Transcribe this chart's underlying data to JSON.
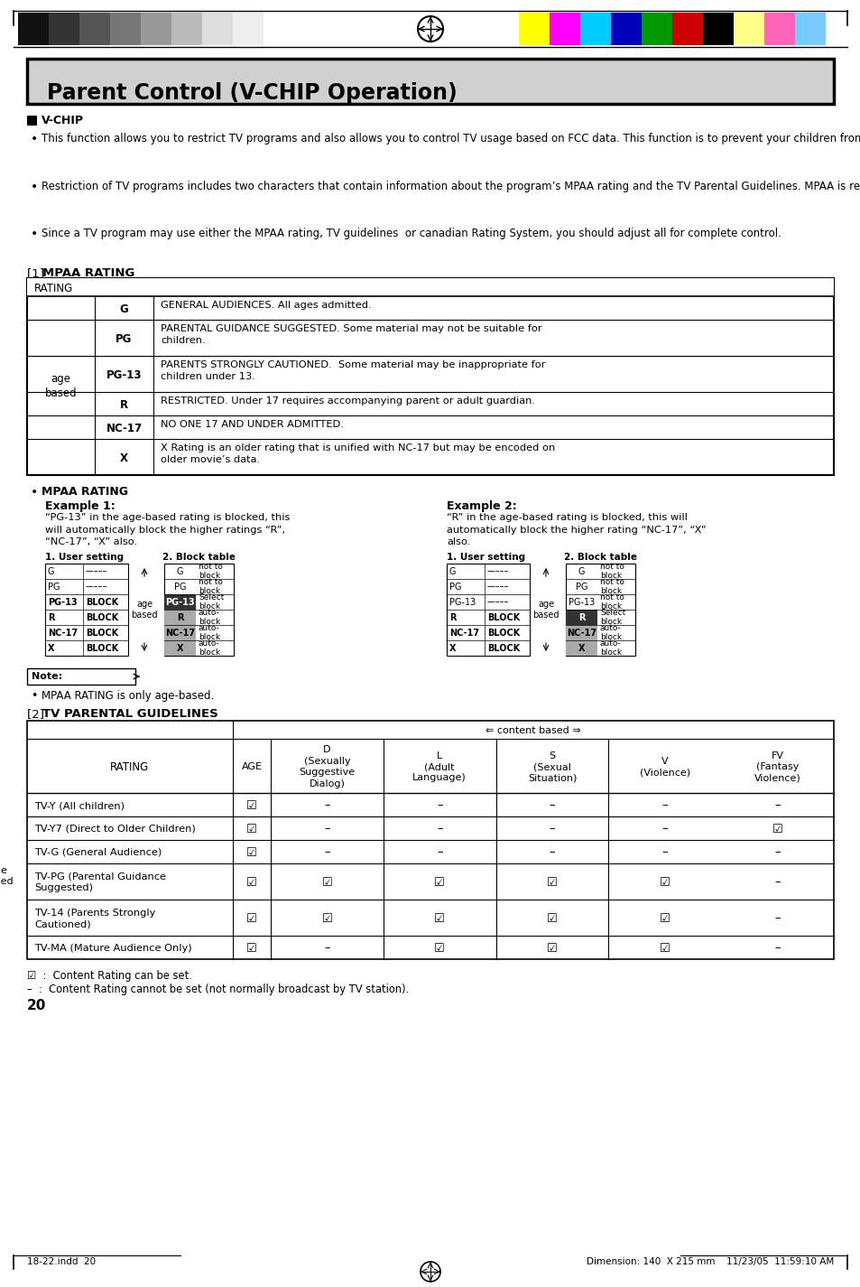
{
  "title": "Parent Control (V-CHIP Operation)",
  "page_number": "20",
  "dimension_text": "Dimension: 140  X 215 mm",
  "footer_left": "18-22.indd  20",
  "footer_right": "11/23/05  11:59:10 AM",
  "bg_color": "#ffffff",
  "title_bg": "#d0d0d0",
  "vchip_heading": "V-CHIP",
  "vchip_bullet1": "This function allows you to restrict TV programs and also allows you to control TV usage based on FCC data. This function is to prevent your children from watching violence or sexual scenes that may be harmful.",
  "vchip_bullet2": "Restriction of TV programs includes two characters that contain information about the program’s MPAA rating and the TV Parental Guidelines. MPAA is restricted by age. TV Parental Guidelines are restricted by age and contents.",
  "vchip_bullet3": "Since a TV program may use either the MPAA rating, TV guidelines  or canadian Rating System, you should adjust all for complete control.",
  "mpaa_heading": "[1] MPAA RATING",
  "mpaa_rows": [
    {
      "rating": "G",
      "desc": "GENERAL AUDIENCES. All ages admitted.",
      "tall": false
    },
    {
      "rating": "PG",
      "desc": "PARENTAL GUIDANCE SUGGESTED. Some material may not be suitable for\nchildren.",
      "tall": true
    },
    {
      "rating": "PG-13",
      "desc": "PARENTS STRONGLY CAUTIONED.  Some material may be inappropriate for\nchildren under 13.",
      "tall": true
    },
    {
      "rating": "R",
      "desc": "RESTRICTED. Under 17 requires accompanying parent or adult guardian.",
      "tall": false
    },
    {
      "rating": "NC-17",
      "desc": "NO ONE 17 AND UNDER ADMITTED.",
      "tall": false
    },
    {
      "rating": "X",
      "desc": "X Rating is an older rating that is unified with NC-17 but may be encoded on\nolder movie’s data.",
      "tall": true
    }
  ],
  "mpaa_rating_bullet": "MPAA RATING",
  "ex1_title": "Example 1:",
  "ex1_text": "“PG-13” in the age-based rating is blocked, this\nwill automatically block the higher ratings “R”,\n“NC-17”, “X” also.",
  "ex2_title": "Example 2:",
  "ex2_text": "“R” in the age-based rating is blocked, this will\nautomatically block the higher rating “NC-17”, “X”\nalso.",
  "ex1_user": [
    {
      "lbl": "G",
      "val": "–––––",
      "hi": false
    },
    {
      "lbl": "PG",
      "val": "–––––",
      "hi": false
    },
    {
      "lbl": "PG-13",
      "val": "BLOCK",
      "hi": false
    },
    {
      "lbl": "R",
      "val": "BLOCK",
      "hi": false
    },
    {
      "lbl": "NC-17",
      "val": "BLOCK",
      "hi": false
    },
    {
      "lbl": "X",
      "val": "BLOCK",
      "hi": false
    }
  ],
  "ex1_block": [
    {
      "lbl": "G",
      "val": "not to\nblock",
      "hi": false
    },
    {
      "lbl": "PG",
      "val": "not to\nblock",
      "hi": false
    },
    {
      "lbl": "PG-13",
      "val": "Select\nblock",
      "hi": true,
      "dark": true
    },
    {
      "lbl": "R",
      "val": "auto-\nblock",
      "hi": true,
      "dark": false
    },
    {
      "lbl": "NC-17",
      "val": "auto-\nblock",
      "hi": true,
      "dark": false
    },
    {
      "lbl": "X",
      "val": "auto-\nblock",
      "hi": true,
      "dark": false
    }
  ],
  "ex2_user": [
    {
      "lbl": "G",
      "val": "–––––",
      "hi": false
    },
    {
      "lbl": "PG",
      "val": "–––––",
      "hi": false
    },
    {
      "lbl": "PG-13",
      "val": "–––––",
      "hi": false
    },
    {
      "lbl": "R",
      "val": "BLOCK",
      "hi": false
    },
    {
      "lbl": "NC-17",
      "val": "BLOCK",
      "hi": false
    },
    {
      "lbl": "X",
      "val": "BLOCK",
      "hi": false
    }
  ],
  "ex2_block": [
    {
      "lbl": "G",
      "val": "not to\nblock",
      "hi": false
    },
    {
      "lbl": "PG",
      "val": "not to\nblock",
      "hi": false
    },
    {
      "lbl": "PG-13",
      "val": "not to\nblock",
      "hi": false
    },
    {
      "lbl": "R",
      "val": "Select\nblock",
      "hi": true,
      "dark": true
    },
    {
      "lbl": "NC-17",
      "val": "auto-\nblock",
      "hi": true,
      "dark": false
    },
    {
      "lbl": "X",
      "val": "auto-\nblock",
      "hi": true,
      "dark": false
    }
  ],
  "note_text": "MPAA RATING is only age-based.",
  "tv_heading": "[2] TV PARENTAL GUIDELINES",
  "tv_col_headers": [
    "AGE",
    "D\n(Sexually\nSuggestive\nDialog)",
    "L\n(Adult\nLanguage)",
    "S\n(Sexual\nSituation)",
    "V\n(Violence)",
    "FV\n(Fantasy\nViolence)"
  ],
  "tv_rows": [
    {
      "rating": "TV-Y (All children)",
      "vals": [
        1,
        0,
        0,
        0,
        0,
        0
      ]
    },
    {
      "rating": "TV-Y7 (Direct to Older Children)",
      "vals": [
        1,
        0,
        0,
        0,
        0,
        1
      ]
    },
    {
      "rating": "TV-G (General Audience)",
      "vals": [
        1,
        0,
        0,
        0,
        0,
        0
      ]
    },
    {
      "rating": "TV-PG (Parental Guidance\nSuggested)",
      "vals": [
        1,
        1,
        1,
        1,
        1,
        0
      ]
    },
    {
      "rating": "TV-14 (Parents Strongly\nCautioned)",
      "vals": [
        1,
        1,
        1,
        1,
        1,
        0
      ]
    },
    {
      "rating": "TV-MA (Mature Audience Only)",
      "vals": [
        1,
        0,
        1,
        1,
        1,
        0
      ]
    }
  ],
  "legend1": "☑  :  Content Rating can be set.",
  "legend2": "–  :  Content Rating cannot be set (not normally broadcast by TV station).",
  "colors_left": [
    "#111111",
    "#333333",
    "#555555",
    "#777777",
    "#999999",
    "#bbbbbb",
    "#dddddd",
    "#eeeeee"
  ],
  "colors_right": [
    "#ffff00",
    "#ff00ff",
    "#00ccff",
    "#0000bb",
    "#009900",
    "#cc0000",
    "#000000",
    "#ffff88",
    "#ff66bb",
    "#77ccff"
  ]
}
